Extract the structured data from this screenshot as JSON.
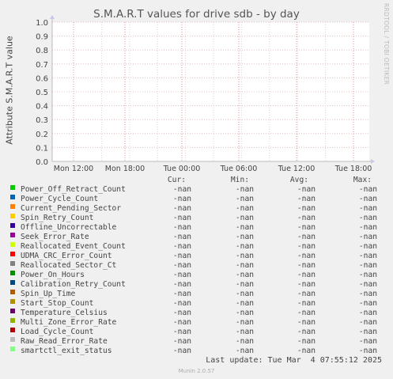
{
  "chart_data": {
    "type": "line",
    "title": "S.M.A.R.T values for drive sdb - by day",
    "ylabel": "Attribute S.M.A.R.T value",
    "ylim": [
      0.0,
      1.0
    ],
    "y_ticks": [
      "0.0",
      "0.1",
      "0.2",
      "0.3",
      "0.4",
      "0.5",
      "0.6",
      "0.7",
      "0.8",
      "0.9",
      "1.0"
    ],
    "x_ticks": [
      "Mon 12:00",
      "Mon 18:00",
      "Tue 00:00",
      "Tue 06:00",
      "Tue 12:00",
      "Tue 18:00"
    ],
    "grid": true,
    "legend_columns": [
      "Cur:",
      "Min:",
      "Avg:",
      "Max:"
    ],
    "series": [
      {
        "name": "Power_Off_Retract_Count",
        "color": "#00cc00",
        "cur": "-nan",
        "min": "-nan",
        "avg": "-nan",
        "max": "-nan"
      },
      {
        "name": "Power_Cycle_Count",
        "color": "#0066b3",
        "cur": "-nan",
        "min": "-nan",
        "avg": "-nan",
        "max": "-nan"
      },
      {
        "name": "Current_Pending_Sector",
        "color": "#ff8000",
        "cur": "-nan",
        "min": "-nan",
        "avg": "-nan",
        "max": "-nan"
      },
      {
        "name": "Spin_Retry_Count",
        "color": "#ffcc00",
        "cur": "-nan",
        "min": "-nan",
        "avg": "-nan",
        "max": "-nan"
      },
      {
        "name": "Offline_Uncorrectable",
        "color": "#330099",
        "cur": "-nan",
        "min": "-nan",
        "avg": "-nan",
        "max": "-nan"
      },
      {
        "name": "Seek_Error_Rate",
        "color": "#990099",
        "cur": "-nan",
        "min": "-nan",
        "avg": "-nan",
        "max": "-nan"
      },
      {
        "name": "Reallocated_Event_Count",
        "color": "#ccff00",
        "cur": "-nan",
        "min": "-nan",
        "avg": "-nan",
        "max": "-nan"
      },
      {
        "name": "UDMA_CRC_Error_Count",
        "color": "#ff0000",
        "cur": "-nan",
        "min": "-nan",
        "avg": "-nan",
        "max": "-nan"
      },
      {
        "name": "Reallocated_Sector_Ct",
        "color": "#808080",
        "cur": "-nan",
        "min": "-nan",
        "avg": "-nan",
        "max": "-nan"
      },
      {
        "name": "Power_On_Hours",
        "color": "#008f00",
        "cur": "-nan",
        "min": "-nan",
        "avg": "-nan",
        "max": "-nan"
      },
      {
        "name": "Calibration_Retry_Count",
        "color": "#00487d",
        "cur": "-nan",
        "min": "-nan",
        "avg": "-nan",
        "max": "-nan"
      },
      {
        "name": "Spin_Up_Time",
        "color": "#b35a00",
        "cur": "-nan",
        "min": "-nan",
        "avg": "-nan",
        "max": "-nan"
      },
      {
        "name": "Start_Stop_Count",
        "color": "#b38f00",
        "cur": "-nan",
        "min": "-nan",
        "avg": "-nan",
        "max": "-nan"
      },
      {
        "name": "Temperature_Celsius",
        "color": "#6b006b",
        "cur": "-nan",
        "min": "-nan",
        "avg": "-nan",
        "max": "-nan"
      },
      {
        "name": "Multi_Zone_Error_Rate",
        "color": "#8fb300",
        "cur": "-nan",
        "min": "-nan",
        "avg": "-nan",
        "max": "-nan"
      },
      {
        "name": "Load_Cycle_Count",
        "color": "#b30000",
        "cur": "-nan",
        "min": "-nan",
        "avg": "-nan",
        "max": "-nan"
      },
      {
        "name": "Raw_Read_Error_Rate",
        "color": "#bebebe",
        "cur": "-nan",
        "min": "-nan",
        "avg": "-nan",
        "max": "-nan"
      },
      {
        "name": "smartctl_exit_status",
        "color": "#80ff80",
        "cur": "-nan",
        "min": "-nan",
        "avg": "-nan",
        "max": "-nan"
      }
    ]
  },
  "side_credit": "RRDTOOL / TOBI OETIKER",
  "last_update": "Last update: Tue Mar  4 07:55:12 2025",
  "version": "Munin 2.0.57"
}
